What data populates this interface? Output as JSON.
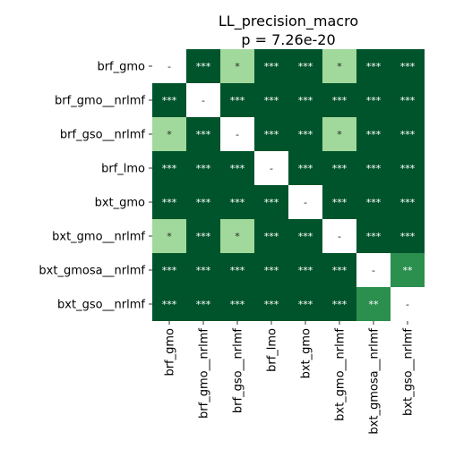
{
  "chart_data": {
    "type": "heatmap",
    "title": "LL_precision_macro",
    "subtitle": "p = 7.26e-20",
    "row_labels": [
      "brf_gmo",
      "brf_gmo__nrlmf",
      "brf_gso__nrlmf",
      "brf_lmo",
      "bxt_gmo",
      "bxt_gmo__nrlmf",
      "bxt_gmosa__nrlmf",
      "bxt_gso__nrlmf"
    ],
    "col_labels": [
      "brf_gmo",
      "brf_gmo__nrlmf",
      "brf_gso__nrlmf",
      "brf_lmo",
      "bxt_gmo",
      "bxt_gmo__nrlmf",
      "bxt_gmosa__nrlmf",
      "bxt_gso__nrlmf"
    ],
    "cells": [
      [
        "-",
        "***",
        "*",
        "***",
        "***",
        "*",
        "***",
        "***"
      ],
      [
        "***",
        "-",
        "***",
        "***",
        "***",
        "***",
        "***",
        "***"
      ],
      [
        "*",
        "***",
        "-",
        "***",
        "***",
        "*",
        "***",
        "***"
      ],
      [
        "***",
        "***",
        "***",
        "-",
        "***",
        "***",
        "***",
        "***"
      ],
      [
        "***",
        "***",
        "***",
        "***",
        "-",
        "***",
        "***",
        "***"
      ],
      [
        "*",
        "***",
        "*",
        "***",
        "***",
        "-",
        "***",
        "***"
      ],
      [
        "***",
        "***",
        "***",
        "***",
        "***",
        "***",
        "-",
        "**"
      ],
      [
        "***",
        "***",
        "***",
        "***",
        "***",
        "***",
        "**",
        "-"
      ]
    ],
    "colors": {
      "***": "#00542b",
      "**": "#2b8f4e",
      "*": "#a0d99b",
      "-": "#ffffff"
    },
    "text_colors": {
      "***": "#ffffff",
      "**": "#ffffff",
      "*": "#262626",
      "-": "#262626"
    }
  }
}
